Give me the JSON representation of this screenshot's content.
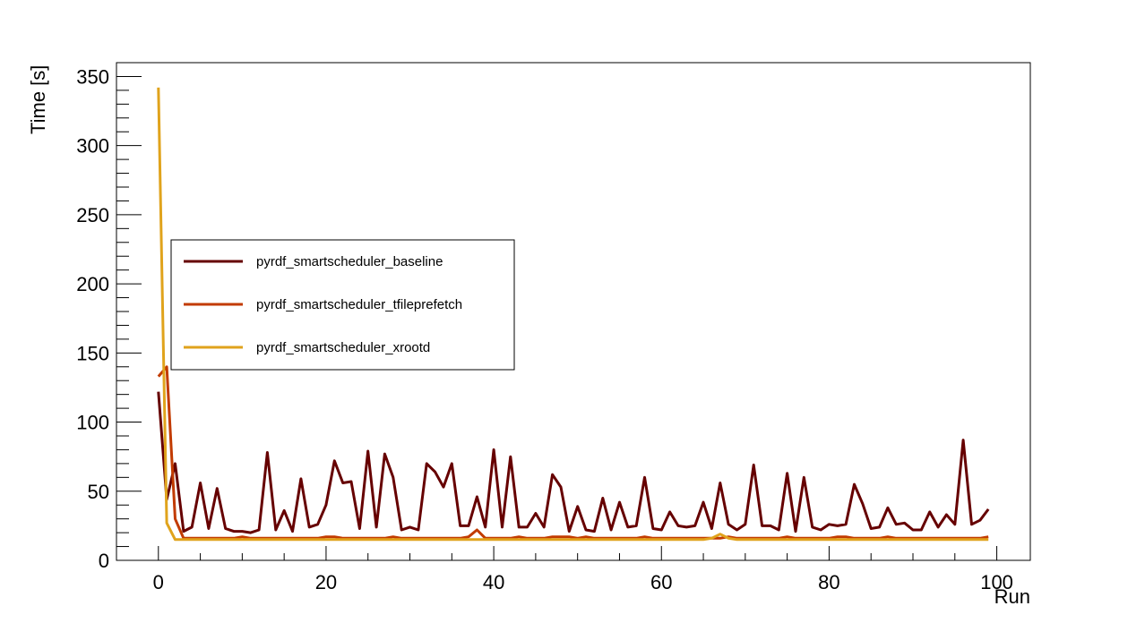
{
  "chart_data": {
    "type": "line",
    "title": "",
    "xlabel": "Run",
    "ylabel": "Time [s]",
    "xlim": [
      -5,
      104
    ],
    "ylim": [
      0,
      360
    ],
    "x_ticks": [
      0,
      20,
      40,
      60,
      80,
      100
    ],
    "y_ticks": [
      0,
      50,
      100,
      150,
      200,
      250,
      300,
      350
    ],
    "legend_position": "center-left",
    "grid": false,
    "series": [
      {
        "name": "pyrdf_smartscheduler_baseline",
        "color": "#660000",
        "x": [
          0,
          1,
          2,
          3,
          4,
          5,
          6,
          7,
          8,
          9,
          10,
          11,
          12,
          13,
          14,
          15,
          16,
          17,
          18,
          19,
          20,
          21,
          22,
          23,
          24,
          25,
          26,
          27,
          28,
          29,
          30,
          31,
          32,
          33,
          34,
          35,
          36,
          37,
          38,
          39,
          40,
          41,
          42,
          43,
          44,
          45,
          46,
          47,
          48,
          49,
          50,
          51,
          52,
          53,
          54,
          55,
          56,
          57,
          58,
          59,
          60,
          61,
          62,
          63,
          64,
          65,
          66,
          67,
          68,
          69,
          70,
          71,
          72,
          73,
          74,
          75,
          76,
          77,
          78,
          79,
          80,
          81,
          82,
          83,
          84,
          85,
          86,
          87,
          88,
          89,
          90,
          91,
          92,
          93,
          94,
          95,
          96,
          97,
          98,
          99
        ],
        "values": [
          122,
          44,
          70,
          21,
          24,
          56,
          23,
          52,
          23,
          21,
          21,
          20,
          22,
          78,
          22,
          36,
          21,
          59,
          24,
          26,
          40,
          72,
          56,
          57,
          23,
          79,
          24,
          77,
          60,
          22,
          24,
          22,
          70,
          64,
          53,
          70,
          25,
          25,
          46,
          24,
          80,
          24,
          75,
          24,
          24,
          34,
          24,
          62,
          53,
          21,
          39,
          22,
          21,
          45,
          22,
          42,
          24,
          25,
          60,
          23,
          22,
          35,
          25,
          24,
          25,
          42,
          23,
          56,
          26,
          22,
          26,
          69,
          25,
          25,
          22,
          63,
          21,
          60,
          24,
          22,
          26,
          25,
          26,
          55,
          41,
          23,
          24,
          38,
          26,
          27,
          22,
          22,
          35,
          24,
          33,
          26,
          87,
          26,
          29,
          37
        ]
      },
      {
        "name": "pyrdf_smartscheduler_tfileprefetch",
        "color": "#c23b00",
        "x": [
          0,
          1,
          2,
          3,
          4,
          5,
          6,
          7,
          8,
          9,
          10,
          11,
          12,
          13,
          14,
          15,
          16,
          17,
          18,
          19,
          20,
          21,
          22,
          23,
          24,
          25,
          26,
          27,
          28,
          29,
          30,
          31,
          32,
          33,
          34,
          35,
          36,
          37,
          38,
          39,
          40,
          41,
          42,
          43,
          44,
          45,
          46,
          47,
          48,
          49,
          50,
          51,
          52,
          53,
          54,
          55,
          56,
          57,
          58,
          59,
          60,
          61,
          62,
          63,
          64,
          65,
          66,
          67,
          68,
          69,
          70,
          71,
          72,
          73,
          74,
          75,
          76,
          77,
          78,
          79,
          80,
          81,
          82,
          83,
          84,
          85,
          86,
          87,
          88,
          89,
          90,
          91,
          92,
          93,
          94,
          95,
          96,
          97,
          98,
          99
        ],
        "values": [
          133,
          140,
          30,
          16,
          16,
          16,
          16,
          16,
          16,
          16,
          17,
          16,
          16,
          16,
          16,
          16,
          16,
          16,
          16,
          16,
          17,
          17,
          16,
          16,
          16,
          16,
          16,
          16,
          17,
          16,
          16,
          16,
          16,
          16,
          16,
          16,
          16,
          17,
          22,
          16,
          16,
          16,
          16,
          17,
          16,
          16,
          16,
          17,
          17,
          17,
          16,
          17,
          16,
          16,
          16,
          16,
          16,
          16,
          17,
          16,
          16,
          16,
          16,
          16,
          16,
          16,
          16,
          16,
          17,
          16,
          16,
          16,
          16,
          16,
          16,
          17,
          16,
          16,
          16,
          16,
          16,
          17,
          17,
          16,
          16,
          16,
          16,
          17,
          16,
          16,
          16,
          16,
          16,
          16,
          16,
          16,
          16,
          16,
          16,
          17
        ]
      },
      {
        "name": "pyrdf_smartscheduler_xrootd",
        "color": "#e0a31c",
        "x": [
          0,
          1,
          2,
          3,
          4,
          5,
          6,
          7,
          8,
          9,
          10,
          11,
          12,
          13,
          14,
          15,
          16,
          17,
          18,
          19,
          20,
          21,
          22,
          23,
          24,
          25,
          26,
          27,
          28,
          29,
          30,
          31,
          32,
          33,
          34,
          35,
          36,
          37,
          38,
          39,
          40,
          41,
          42,
          43,
          44,
          45,
          46,
          47,
          48,
          49,
          50,
          51,
          52,
          53,
          54,
          55,
          56,
          57,
          58,
          59,
          60,
          61,
          62,
          63,
          64,
          65,
          66,
          67,
          68,
          69,
          70,
          71,
          72,
          73,
          74,
          75,
          76,
          77,
          78,
          79,
          80,
          81,
          82,
          83,
          84,
          85,
          86,
          87,
          88,
          89,
          90,
          91,
          92,
          93,
          94,
          95,
          96,
          97,
          98,
          99
        ],
        "values": [
          342,
          27,
          15,
          15,
          15,
          15,
          15,
          15,
          15,
          15,
          15,
          15,
          15,
          15,
          15,
          15,
          15,
          15,
          15,
          15,
          15,
          15,
          15,
          15,
          15,
          15,
          15,
          15,
          15,
          15,
          15,
          15,
          15,
          15,
          15,
          15,
          15,
          15,
          15,
          15,
          15,
          15,
          15,
          15,
          15,
          15,
          15,
          15,
          15,
          15,
          15,
          15,
          15,
          15,
          15,
          15,
          15,
          15,
          15,
          15,
          15,
          15,
          15,
          15,
          15,
          15,
          16,
          19,
          16,
          15,
          15,
          15,
          15,
          15,
          15,
          15,
          15,
          15,
          15,
          15,
          15,
          15,
          15,
          15,
          15,
          15,
          15,
          15,
          15,
          15,
          15,
          15,
          15,
          15,
          15,
          15,
          15,
          15,
          15,
          15
        ]
      }
    ]
  }
}
